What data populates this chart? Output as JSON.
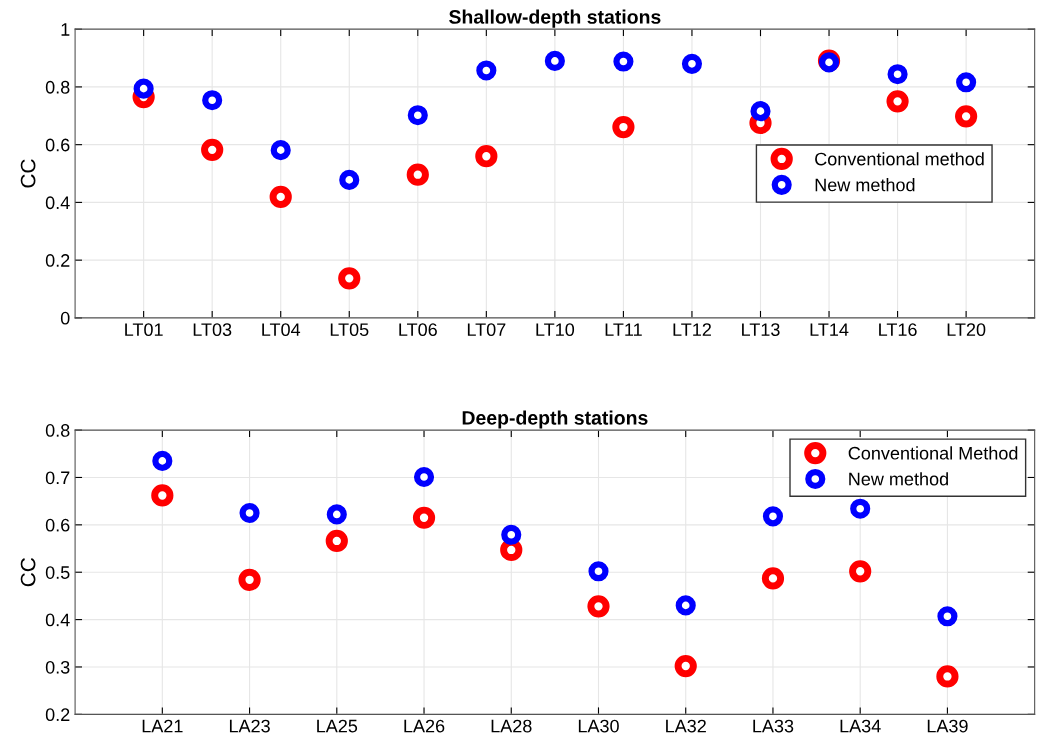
{
  "chart_data": [
    {
      "type": "scatter",
      "title": "Shallow-depth stations",
      "ylabel": "CC",
      "categories": [
        "LT01",
        "LT03",
        "LT04",
        "LT05",
        "LT06",
        "LT07",
        "LT10",
        "LT11",
        "LT12",
        "LT13",
        "LT14",
        "LT16",
        "LT20"
      ],
      "series": [
        {
          "name": "Conventional method",
          "color": "#ff0000",
          "values": [
            0.765,
            0.582,
            0.419,
            0.137,
            0.496,
            0.56,
            null,
            0.661,
            null,
            0.675,
            0.891,
            0.75,
            0.698
          ]
        },
        {
          "name": "New method",
          "color": "#0000ff",
          "values": [
            0.794,
            0.754,
            0.581,
            0.478,
            0.702,
            0.857,
            0.89,
            0.888,
            0.88,
            0.716,
            0.885,
            0.844,
            0.816
          ]
        }
      ],
      "ylim": [
        0,
        1
      ],
      "yticks": [
        0,
        0.2,
        0.4,
        0.6,
        0.8,
        1
      ],
      "grid": true,
      "legend": "right",
      "marker": "circle"
    },
    {
      "type": "scatter",
      "title": "Deep-depth stations",
      "ylabel": "CC",
      "categories": [
        "LA21",
        "LA23",
        "LA25",
        "LA26",
        "LA28",
        "LA30",
        "LA32",
        "LA33",
        "LA34",
        "LA39"
      ],
      "series": [
        {
          "name": "Conventional Method",
          "color": "#ff0000",
          "values": [
            0.662,
            0.484,
            0.566,
            0.615,
            0.547,
            0.428,
            0.302,
            0.487,
            0.502,
            0.28
          ]
        },
        {
          "name": "New method",
          "color": "#0000ff",
          "values": [
            0.735,
            0.625,
            0.622,
            0.701,
            0.579,
            0.502,
            0.43,
            0.618,
            0.634,
            0.407
          ]
        }
      ],
      "ylim": [
        0.2,
        0.8
      ],
      "yticks": [
        0.2,
        0.3,
        0.4,
        0.5,
        0.6,
        0.7,
        0.8
      ],
      "grid": true,
      "legend": "top right",
      "marker": "circle"
    }
  ]
}
